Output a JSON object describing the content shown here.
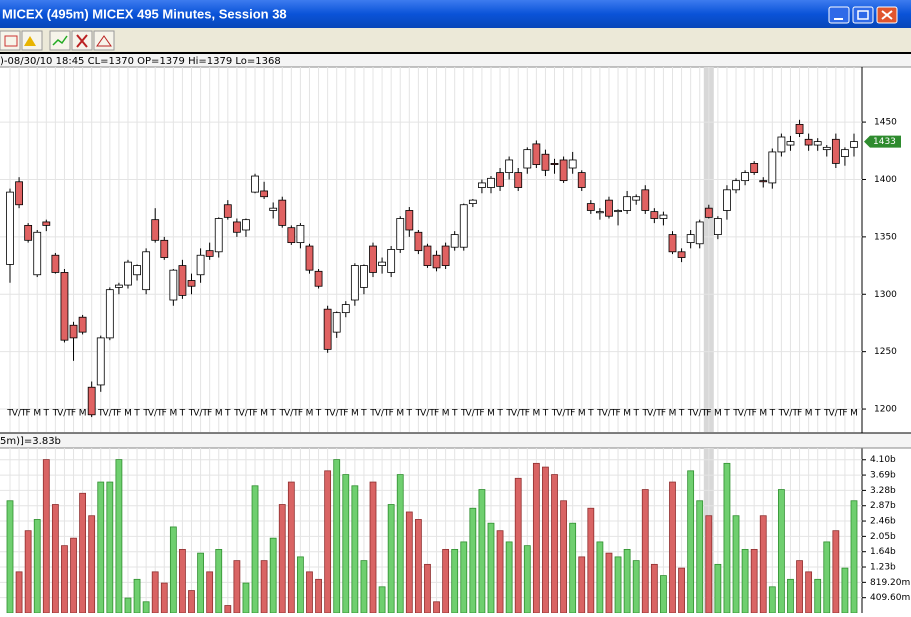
{
  "window": {
    "title": "MICEX (495m) MICEX 495 Minutes, Session 38",
    "info": ")-08/30/10 18:45 CL=1370 OP=1379 Hi=1379 Lo=1368",
    "volume_info": "5m)]=3.83b",
    "last_price": "1433"
  },
  "chart_data": [
    {
      "type": "candlestick",
      "ylim": [
        1180,
        1498
      ],
      "yticks": [
        1200,
        1250,
        1300,
        1350,
        1400,
        1450
      ],
      "grid": true,
      "up_color": "#ffffff",
      "down_color": "#e06262",
      "highlight": 77,
      "categories": [
        "T",
        "V/T",
        "F",
        "M",
        "T",
        "T",
        "V/T",
        "F",
        "M",
        "T",
        "T",
        "V/T",
        "F",
        "M",
        "T",
        "T",
        "V/T",
        "F",
        "M",
        "T",
        "T",
        "V/T",
        "F",
        "M",
        "T",
        "T",
        "V/T",
        "F",
        "M",
        "T",
        "T",
        "V/T",
        "F",
        "M",
        "T",
        "T",
        "V/T",
        "F",
        "M",
        "T",
        "T",
        "V/T",
        "F",
        "M",
        "T",
        "T",
        "V/T",
        "F",
        "M",
        "T",
        "T",
        "V/T",
        "F",
        "M",
        "T",
        "T",
        "V/T",
        "F",
        "M",
        "T",
        "T",
        "V/T",
        "F",
        "M",
        "T",
        "T",
        "V/T",
        "F",
        "M",
        "T",
        "T",
        "V/T",
        "F",
        "M",
        "T",
        "T",
        "V/T",
        "F",
        "M",
        "T",
        "T",
        "V/T",
        "F",
        "M",
        "T",
        "T",
        "V/T",
        "F",
        "M",
        "T",
        "T",
        "V/T",
        "F",
        "M"
      ],
      "open": [
        1326,
        1398,
        1360,
        1317,
        1363,
        1334,
        1319,
        1273,
        1280,
        1219,
        1221,
        1262,
        1306,
        1308,
        1317,
        1304,
        1365,
        1347,
        1295,
        1325,
        1312,
        1317,
        1338,
        1337,
        1378,
        1363,
        1356,
        1389,
        1390,
        1373,
        1382,
        1358,
        1345,
        1342,
        1320,
        1287,
        1267,
        1284,
        1295,
        1306,
        1342,
        1325,
        1319,
        1339,
        1373,
        1354,
        1342,
        1334,
        1342,
        1341,
        1341,
        1379,
        1393,
        1393,
        1406,
        1406,
        1406,
        1410,
        1431,
        1422,
        1414,
        1417,
        1410,
        1406,
        1379,
        1371,
        1382,
        1372,
        1373,
        1382,
        1391,
        1372,
        1366,
        1352,
        1337,
        1345,
        1344,
        1375,
        1352,
        1373,
        1391,
        1399,
        1414,
        1399,
        1397,
        1424,
        1430,
        1448,
        1435,
        1430,
        1426,
        1435,
        1420,
        1428
      ],
      "high": [
        1392,
        1402,
        1362,
        1356,
        1365,
        1336,
        1322,
        1276,
        1282,
        1224,
        1264,
        1306,
        1310,
        1330,
        1326,
        1340,
        1375,
        1350,
        1322,
        1330,
        1318,
        1340,
        1345,
        1367,
        1382,
        1366,
        1366,
        1405,
        1398,
        1380,
        1385,
        1360,
        1362,
        1344,
        1322,
        1290,
        1285,
        1294,
        1327,
        1326,
        1345,
        1332,
        1342,
        1368,
        1376,
        1356,
        1344,
        1338,
        1345,
        1355,
        1379,
        1383,
        1400,
        1403,
        1410,
        1420,
        1410,
        1428,
        1434,
        1426,
        1418,
        1420,
        1424,
        1408,
        1382,
        1375,
        1385,
        1374,
        1390,
        1387,
        1395,
        1375,
        1372,
        1355,
        1340,
        1356,
        1365,
        1378,
        1368,
        1395,
        1401,
        1408,
        1416,
        1402,
        1427,
        1440,
        1438,
        1452,
        1440,
        1436,
        1430,
        1440,
        1428,
        1440
      ],
      "low": [
        1310,
        1375,
        1345,
        1315,
        1355,
        1318,
        1258,
        1242,
        1265,
        1193,
        1215,
        1260,
        1300,
        1305,
        1312,
        1300,
        1345,
        1330,
        1290,
        1296,
        1300,
        1310,
        1330,
        1332,
        1365,
        1350,
        1350,
        1388,
        1383,
        1366,
        1358,
        1343,
        1340,
        1318,
        1305,
        1249,
        1262,
        1280,
        1290,
        1300,
        1315,
        1318,
        1315,
        1336,
        1350,
        1335,
        1323,
        1320,
        1322,
        1338,
        1338,
        1376,
        1388,
        1388,
        1390,
        1400,
        1390,
        1405,
        1410,
        1403,
        1405,
        1397,
        1405,
        1390,
        1370,
        1365,
        1366,
        1360,
        1370,
        1378,
        1370,
        1362,
        1360,
        1335,
        1328,
        1340,
        1340,
        1366,
        1348,
        1365,
        1388,
        1395,
        1404,
        1393,
        1392,
        1420,
        1425,
        1437,
        1425,
        1425,
        1420,
        1410,
        1412,
        1420
      ],
      "close": [
        1389,
        1378,
        1347,
        1354,
        1360,
        1319,
        1260,
        1262,
        1267,
        1195,
        1262,
        1304,
        1308,
        1328,
        1325,
        1337,
        1347,
        1332,
        1321,
        1299,
        1307,
        1334,
        1333,
        1366,
        1367,
        1354,
        1365,
        1403,
        1385,
        1375,
        1360,
        1345,
        1360,
        1321,
        1307,
        1252,
        1284,
        1291,
        1325,
        1325,
        1319,
        1328,
        1339,
        1366,
        1356,
        1338,
        1325,
        1323,
        1325,
        1352,
        1378,
        1382,
        1397,
        1401,
        1394,
        1417,
        1393,
        1426,
        1413,
        1408,
        1413,
        1399,
        1417,
        1393,
        1373,
        1372,
        1368,
        1373,
        1385,
        1385,
        1373,
        1366,
        1369,
        1337,
        1332,
        1352,
        1363,
        1367,
        1366,
        1391,
        1399,
        1406,
        1406,
        1398,
        1424,
        1437,
        1433,
        1440,
        1430,
        1433,
        1428,
        1414,
        1426,
        1433
      ]
    },
    {
      "type": "bar",
      "ylim": [
        0,
        4.41
      ],
      "up_color": "#6fcf6f",
      "down_color": "#d96464",
      "yticks": [
        {
          "value": 0.4096,
          "label": "409.60m"
        },
        {
          "value": 0.8192,
          "label": "819.20m"
        },
        {
          "value": 1.2288,
          "label": "1.23b"
        },
        {
          "value": 1.6384,
          "label": "1.64b"
        },
        {
          "value": 2.048,
          "label": "2.05b"
        },
        {
          "value": 2.4576,
          "label": "2.46b"
        },
        {
          "value": 2.8672,
          "label": "2.87b"
        },
        {
          "value": 3.2768,
          "label": "3.28b"
        },
        {
          "value": 3.6864,
          "label": "3.69b"
        },
        {
          "value": 4.096,
          "label": "4.10b"
        }
      ],
      "values": [
        3.0,
        1.1,
        2.2,
        2.5,
        4.1,
        2.9,
        1.8,
        2.0,
        3.2,
        2.6,
        3.5,
        3.5,
        4.1,
        0.4,
        0.9,
        0.3,
        1.1,
        0.8,
        2.3,
        1.7,
        0.6,
        1.6,
        1.1,
        1.7,
        0.2,
        1.4,
        0.8,
        3.4,
        1.4,
        2.0,
        2.9,
        3.5,
        1.5,
        1.1,
        0.9,
        3.8,
        4.1,
        3.7,
        3.4,
        1.4,
        3.5,
        0.7,
        2.9,
        3.7,
        2.7,
        2.5,
        1.3,
        0.3,
        1.7,
        1.7,
        1.9,
        2.8,
        3.3,
        2.4,
        2.2,
        1.9,
        3.6,
        1.8,
        4.0,
        3.9,
        3.7,
        3.0,
        2.4,
        1.5,
        2.8,
        1.9,
        1.6,
        1.5,
        1.7,
        1.4,
        3.3,
        1.3,
        1.0,
        3.5,
        1.2,
        3.8,
        3.0,
        2.6,
        1.3,
        4.0,
        2.6,
        1.7,
        1.7,
        2.6,
        0.7,
        3.3,
        0.9,
        1.4,
        1.1,
        0.9,
        1.9,
        2.2,
        1.2,
        3.0
      ]
    }
  ]
}
